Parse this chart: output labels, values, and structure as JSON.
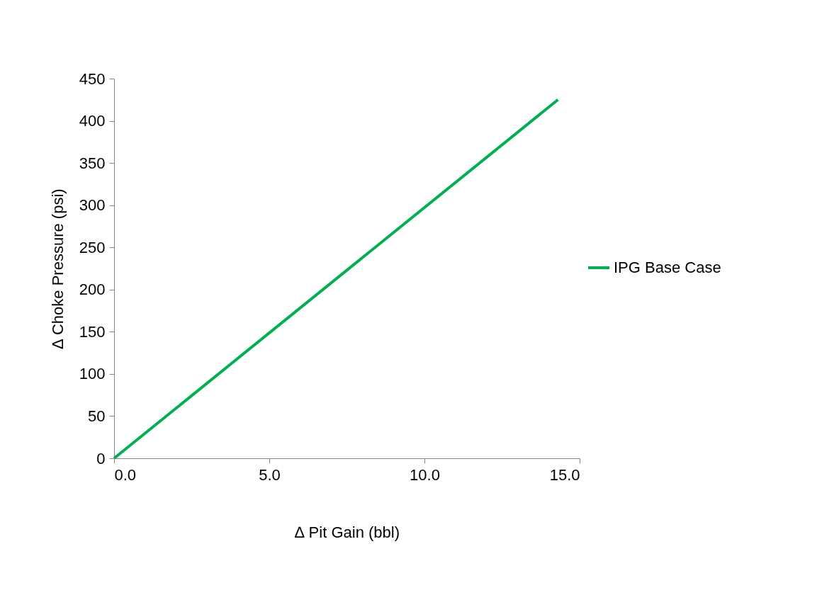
{
  "chart_data": {
    "type": "line",
    "xlabel": "∆ Pit Gain (bbl)",
    "ylabel": "∆ Choke Pressure (psi)",
    "x": [
      0,
      14.3
    ],
    "series": [
      {
        "name": "IPG Base Case",
        "color": "#00b050",
        "values": [
          0,
          425
        ]
      }
    ],
    "xlim": [
      0,
      15
    ],
    "xticks": [
      {
        "value": 0,
        "label": "0.0"
      },
      {
        "value": 5,
        "label": "5.0"
      },
      {
        "value": 10,
        "label": "10.0"
      },
      {
        "value": 15,
        "label": "15.0"
      }
    ],
    "ylim": [
      0,
      450
    ],
    "yticks": [
      0,
      50,
      100,
      150,
      200,
      250,
      300,
      350,
      400,
      450
    ],
    "grid": false,
    "legend": "right",
    "marker": "none",
    "line_style": "solid"
  }
}
